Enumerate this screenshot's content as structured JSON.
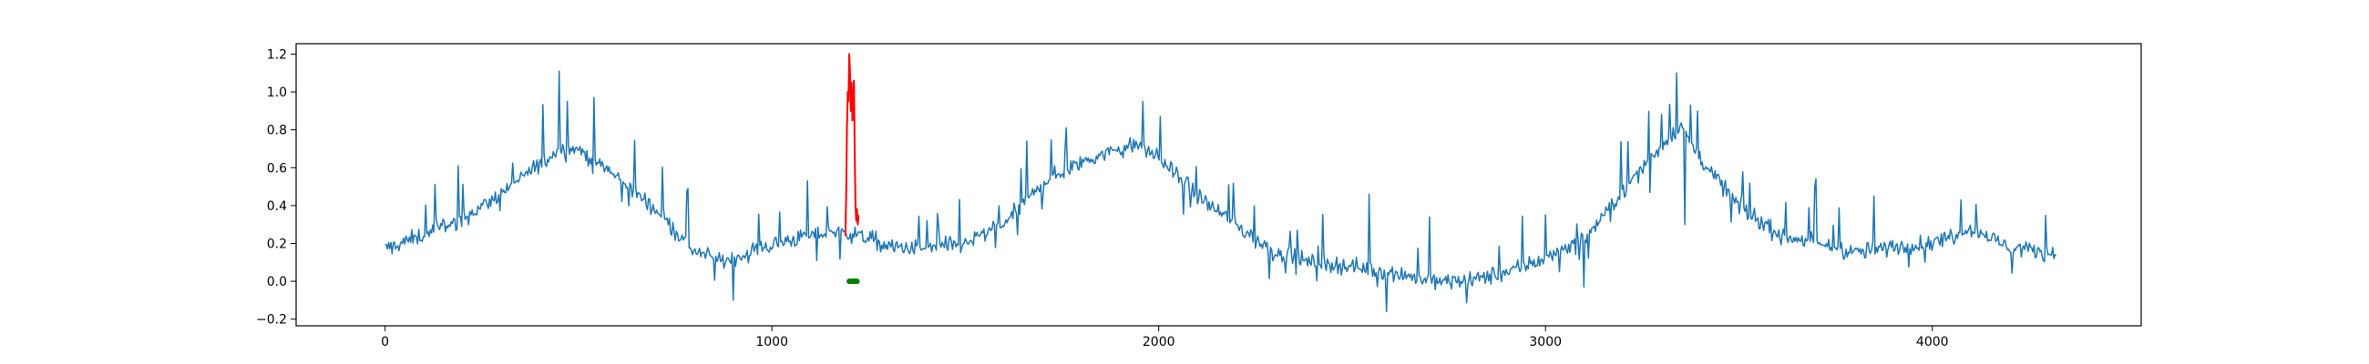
{
  "chart_data": {
    "type": "line",
    "title": "",
    "xlabel": "",
    "ylabel": "",
    "xlim": [
      -230,
      4540
    ],
    "ylim": [
      -0.235,
      1.255
    ],
    "xticks": [
      0,
      1000,
      2000,
      3000,
      4000
    ],
    "xtick_labels": [
      "0",
      "1000",
      "2000",
      "3000",
      "4000"
    ],
    "yticks": [
      -0.2,
      0.0,
      0.2,
      0.4,
      0.6,
      0.8,
      1.0,
      1.2
    ],
    "ytick_labels": [
      "−0.2",
      "0.0",
      "0.2",
      "0.4",
      "0.6",
      "0.8",
      "1.0",
      "1.2"
    ],
    "grid": false,
    "series": [
      {
        "color": "#1f77b4",
        "kind": "line",
        "trend_x": [
          0,
          80,
          200,
          300,
          400,
          450,
          500,
          600,
          700,
          800,
          870,
          950,
          1050,
          1150,
          1180,
          1250,
          1300,
          1400,
          1500,
          1600,
          1700,
          1800,
          1900,
          1950,
          2000,
          2100,
          2200,
          2300,
          2400,
          2500,
          2600,
          2700,
          2800,
          2900,
          3000,
          3100,
          3200,
          3300,
          3350,
          3400,
          3500,
          3600,
          3700,
          3800,
          3900,
          4000,
          4100,
          4200,
          4320
        ],
        "trend_y": [
          0.17,
          0.23,
          0.33,
          0.46,
          0.62,
          0.7,
          0.7,
          0.55,
          0.38,
          0.16,
          0.1,
          0.16,
          0.22,
          0.26,
          0.26,
          0.23,
          0.18,
          0.17,
          0.2,
          0.3,
          0.52,
          0.63,
          0.7,
          0.72,
          0.65,
          0.45,
          0.3,
          0.15,
          0.1,
          0.08,
          0.05,
          0.0,
          0.0,
          0.05,
          0.12,
          0.22,
          0.48,
          0.72,
          0.82,
          0.65,
          0.4,
          0.25,
          0.2,
          0.15,
          0.18,
          0.2,
          0.28,
          0.18,
          0.15
        ],
        "noise": 0.05,
        "spikes": [
          {
            "x": 450,
            "y": 1.11
          },
          {
            "x": 470,
            "y": 0.95
          },
          {
            "x": 900,
            "y": -0.1
          },
          {
            "x": 1093,
            "y": 0.53
          },
          {
            "x": 1660,
            "y": 0.74
          },
          {
            "x": 1762,
            "y": 0.81
          },
          {
            "x": 1960,
            "y": 0.95
          },
          {
            "x": 2005,
            "y": 0.87
          },
          {
            "x": 2180,
            "y": 0.51
          },
          {
            "x": 2543,
            "y": 0.46
          },
          {
            "x": 2590,
            "y": -0.16
          },
          {
            "x": 2700,
            "y": 0.34
          },
          {
            "x": 3000,
            "y": 0.35
          },
          {
            "x": 3100,
            "y": -0.03
          },
          {
            "x": 3340,
            "y": 1.1
          },
          {
            "x": 3360,
            "y": 0.3
          },
          {
            "x": 3700,
            "y": 0.54
          },
          {
            "x": 3850,
            "y": 0.45
          }
        ]
      },
      {
        "color": "#ff0000",
        "kind": "line",
        "x": [
          1190,
          1192,
          1194,
          1196,
          1198,
          1200,
          1202,
          1204,
          1206,
          1208,
          1210,
          1212,
          1214,
          1216,
          1218,
          1220,
          1222,
          1224
        ],
        "y": [
          0.24,
          0.45,
          0.8,
          1.0,
          0.95,
          1.2,
          1.1,
          0.9,
          1.05,
          0.85,
          0.95,
          1.06,
          0.7,
          0.4,
          0.32,
          0.38,
          0.3,
          0.35
        ]
      },
      {
        "color": "#008000",
        "kind": "marker",
        "x": [
          1200,
          1202,
          1204,
          1206,
          1208,
          1210,
          1212,
          1214,
          1216,
          1218,
          1220
        ],
        "y": [
          0,
          0,
          0,
          0,
          0,
          0,
          0,
          0,
          0,
          0,
          0
        ]
      }
    ]
  }
}
